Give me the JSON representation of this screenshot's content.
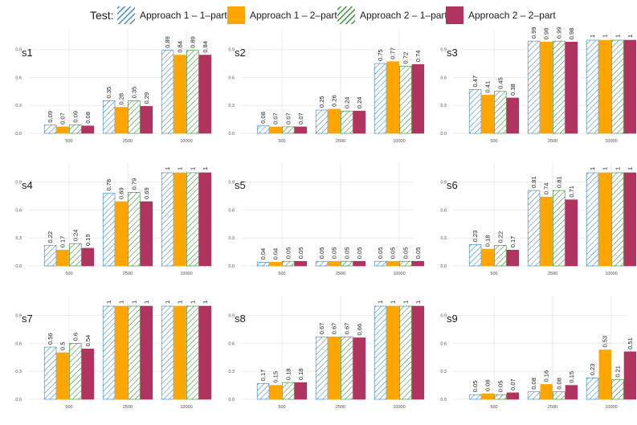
{
  "chart_data": {
    "type": "bar",
    "legend": {
      "title": "Test:",
      "position": "top",
      "entries": [
        {
          "name": "Approach 1 – 1–part",
          "color": "#2e7fbf",
          "fill_style": "hatched"
        },
        {
          "name": "Approach 1 – 2–part",
          "color": "#ffa500",
          "fill_style": "solid"
        },
        {
          "name": "Approach 2 – 1–part",
          "color": "#1f8a22",
          "fill_style": "hatched"
        },
        {
          "name": "Approach 2 – 2–part",
          "color": "#b0345f",
          "fill_style": "solid"
        }
      ]
    },
    "categories": [
      "500",
      "2500",
      "10000"
    ],
    "yticks": [
      0.0,
      0.3,
      0.6,
      0.9
    ],
    "ytick_labels": [
      "0.0",
      "0.3",
      "0.6",
      "0.9"
    ],
    "ylim": [
      0,
      1.05
    ],
    "panels": [
      {
        "title": "s1",
        "values": [
          [
            0.09,
            0.07,
            0.09,
            0.08
          ],
          [
            0.35,
            0.28,
            0.35,
            0.29
          ],
          [
            0.89,
            0.84,
            0.89,
            0.84
          ]
        ],
        "labels": [
          [
            "0.09",
            "0.07",
            "0.09",
            "0.08"
          ],
          [
            "0.35",
            "0.28",
            "0.35",
            "0.29"
          ],
          [
            "0.89",
            "0.84",
            "0.89",
            "0.84"
          ]
        ]
      },
      {
        "title": "s2",
        "values": [
          [
            0.08,
            0.07,
            0.07,
            0.07
          ],
          [
            0.25,
            0.26,
            0.24,
            0.24
          ],
          [
            0.75,
            0.77,
            0.72,
            0.74
          ]
        ],
        "labels": [
          [
            "0.08",
            "0.07",
            "0.07",
            "0.07"
          ],
          [
            "0.25",
            "0.26",
            "0.24",
            "0.24"
          ],
          [
            "0.75",
            "0.77",
            "0.72",
            "0.74"
          ]
        ]
      },
      {
        "title": "s3",
        "values": [
          [
            0.47,
            0.41,
            0.45,
            0.38
          ],
          [
            0.99,
            0.98,
            0.99,
            0.98
          ],
          [
            1,
            1,
            1,
            1
          ]
        ],
        "labels": [
          [
            "0.47",
            "0.41",
            "0.45",
            "0.38"
          ],
          [
            "0.99",
            "0.98",
            "0.99",
            "0.98"
          ],
          [
            "1",
            "1",
            "1",
            "1"
          ]
        ]
      },
      {
        "title": "s4",
        "values": [
          [
            0.22,
            0.17,
            0.24,
            0.19
          ],
          [
            0.78,
            0.69,
            0.79,
            0.69
          ],
          [
            1,
            1,
            1,
            1
          ]
        ],
        "labels": [
          [
            "0.22",
            "0.17",
            "0.24",
            "0.19"
          ],
          [
            "0.78",
            "0.69",
            "0.79",
            "0.69"
          ],
          [
            "1",
            "1",
            "1",
            "1"
          ]
        ]
      },
      {
        "title": "s5",
        "values": [
          [
            0.04,
            0.04,
            0.05,
            0.05
          ],
          [
            0.05,
            0.05,
            0.05,
            0.05
          ],
          [
            0.05,
            0.05,
            0.05,
            0.05
          ]
        ],
        "labels": [
          [
            "0.04",
            "0.04",
            "0.05",
            "0.05"
          ],
          [
            "0.05",
            "0.05",
            "0.05",
            "0.05"
          ],
          [
            "0.05",
            "0.05",
            "0.05",
            "0.05"
          ]
        ]
      },
      {
        "title": "s6",
        "values": [
          [
            0.23,
            0.18,
            0.22,
            0.17
          ],
          [
            0.81,
            0.74,
            0.81,
            0.71
          ],
          [
            1,
            1,
            1,
            1
          ]
        ],
        "labels": [
          [
            "0.23",
            "0.18",
            "0.22",
            "0.17"
          ],
          [
            "0.81",
            "0.74",
            "0.81",
            "0.71"
          ],
          [
            "1",
            "1",
            "1",
            "1"
          ]
        ]
      },
      {
        "title": "s7",
        "values": [
          [
            0.56,
            0.5,
            0.6,
            0.54
          ],
          [
            1,
            1,
            1,
            1
          ],
          [
            1,
            1,
            1,
            1
          ]
        ],
        "labels": [
          [
            "0.56",
            "0.5",
            "0.6",
            "0.54"
          ],
          [
            "1",
            "1",
            "1",
            "1"
          ],
          [
            "1",
            "1",
            "1",
            "1"
          ]
        ]
      },
      {
        "title": "s8",
        "values": [
          [
            0.17,
            0.15,
            0.18,
            0.18
          ],
          [
            0.67,
            0.67,
            0.67,
            0.66
          ],
          [
            1,
            1,
            1,
            1
          ]
        ],
        "labels": [
          [
            "0.17",
            "0.15",
            "0.18",
            "0.18"
          ],
          [
            "0.67",
            "0.67",
            "0.67",
            "0.66"
          ],
          [
            "1",
            "1",
            "1",
            "1"
          ]
        ]
      },
      {
        "title": "s9",
        "values": [
          [
            0.05,
            0.06,
            0.05,
            0.07
          ],
          [
            0.08,
            0.16,
            0.08,
            0.15
          ],
          [
            0.23,
            0.53,
            0.21,
            0.51
          ]
        ],
        "labels": [
          [
            "0.05",
            "0.06",
            "0.05",
            "0.07"
          ],
          [
            "0.08",
            "0.16",
            "0.08",
            "0.15"
          ],
          [
            "0.23",
            "0.53",
            "0.21",
            "0.51"
          ]
        ]
      }
    ]
  }
}
